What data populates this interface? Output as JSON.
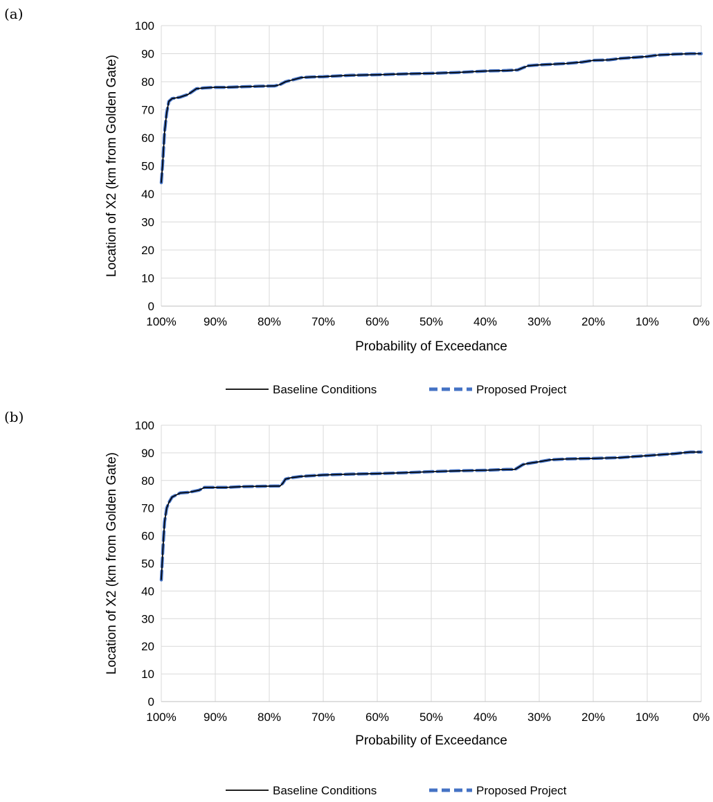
{
  "panels": [
    {
      "label": "(a)"
    },
    {
      "label": "(b)"
    }
  ],
  "chart_data": [
    {
      "type": "line",
      "xlabel": "Probability of Exceedance",
      "ylabel": "Location of X2 (km from Golden Gate)",
      "xlim": [
        100,
        0
      ],
      "ylim": [
        0,
        100
      ],
      "x_ticks": [
        "100%",
        "90%",
        "80%",
        "70%",
        "60%",
        "50%",
        "40%",
        "30%",
        "20%",
        "10%",
        "0%"
      ],
      "y_ticks": [
        "0",
        "10",
        "20",
        "30",
        "40",
        "50",
        "60",
        "70",
        "80",
        "90",
        "100"
      ],
      "grid": true,
      "legend_position": "bottom",
      "series": [
        {
          "name": "Baseline Conditions",
          "color": "#000000",
          "style": "solid",
          "x": [
            100,
            99.7,
            99.4,
            99,
            98.6,
            98,
            96.5,
            95,
            93.5,
            92,
            90,
            88,
            85,
            82,
            79,
            78,
            77,
            76,
            74,
            72,
            70,
            65,
            60,
            55,
            50,
            45,
            40,
            36,
            34,
            33,
            32,
            30,
            25,
            22,
            20,
            17,
            15,
            10,
            8,
            5,
            2,
            0
          ],
          "y": [
            44,
            52,
            62,
            69,
            73,
            74,
            74.5,
            75.5,
            77.5,
            77.8,
            78,
            78,
            78.2,
            78.4,
            78.5,
            79,
            80,
            80.5,
            81.5,
            81.7,
            81.8,
            82.3,
            82.5,
            82.8,
            83,
            83.3,
            83.8,
            84,
            84.2,
            85,
            85.7,
            86,
            86.5,
            87,
            87.6,
            87.8,
            88.3,
            89,
            89.5,
            89.8,
            90,
            90
          ]
        },
        {
          "name": "Proposed Project",
          "color": "#4472C4",
          "style": "dashed",
          "x": [
            100,
            99.7,
            99.4,
            99,
            98.6,
            98,
            96.5,
            95,
            93.5,
            92,
            90,
            88,
            85,
            82,
            79,
            78,
            77,
            76,
            74,
            72,
            70,
            65,
            60,
            55,
            50,
            45,
            40,
            36,
            34,
            33,
            32,
            30,
            25,
            22,
            20,
            17,
            15,
            10,
            8,
            5,
            2,
            0
          ],
          "y": [
            44,
            52,
            62,
            69,
            73,
            74,
            74.5,
            75.5,
            77.5,
            77.8,
            78,
            78,
            78.2,
            78.4,
            78.5,
            79,
            80,
            80.5,
            81.5,
            81.7,
            81.8,
            82.3,
            82.5,
            82.8,
            83,
            83.3,
            83.8,
            84,
            84.2,
            85,
            85.7,
            86,
            86.5,
            87,
            87.6,
            87.8,
            88.3,
            89,
            89.5,
            89.8,
            90,
            90
          ]
        }
      ]
    },
    {
      "type": "line",
      "xlabel": "Probability of Exceedance",
      "ylabel": "Location of X2 (km from Golden Gate)",
      "xlim": [
        100,
        0
      ],
      "ylim": [
        0,
        100
      ],
      "x_ticks": [
        "100%",
        "90%",
        "80%",
        "70%",
        "60%",
        "50%",
        "40%",
        "30%",
        "20%",
        "10%",
        "0%"
      ],
      "y_ticks": [
        "0",
        "10",
        "20",
        "30",
        "40",
        "50",
        "60",
        "70",
        "80",
        "90",
        "100"
      ],
      "grid": true,
      "legend_position": "bottom",
      "series": [
        {
          "name": "Baseline Conditions",
          "color": "#000000",
          "style": "solid",
          "x": [
            100,
            99.7,
            99.4,
            99,
            98.6,
            98,
            96.5,
            95,
            93,
            92,
            90,
            88,
            85,
            82,
            79,
            78,
            77.5,
            77,
            76,
            74,
            70,
            65,
            60,
            55,
            50,
            45,
            40,
            36,
            34.5,
            33,
            32,
            30,
            28,
            25,
            20,
            15,
            10,
            5,
            2,
            0
          ],
          "y": [
            44,
            55,
            65,
            70,
            72,
            74,
            75.5,
            75.7,
            76.5,
            77.5,
            77.5,
            77.5,
            77.8,
            77.9,
            78,
            78,
            79,
            80.5,
            81,
            81.5,
            82,
            82.3,
            82.5,
            82.8,
            83.2,
            83.5,
            83.7,
            84,
            84,
            85.8,
            86.2,
            86.8,
            87.5,
            87.8,
            88,
            88.3,
            89,
            89.7,
            90.3,
            90.3
          ]
        },
        {
          "name": "Proposed Project",
          "color": "#4472C4",
          "style": "dashed",
          "x": [
            100,
            99.7,
            99.4,
            99,
            98.6,
            98,
            96.5,
            95,
            93,
            92,
            90,
            88,
            85,
            82,
            79,
            78,
            77.5,
            77,
            76,
            74,
            70,
            65,
            60,
            55,
            50,
            45,
            40,
            36,
            34.5,
            33,
            32,
            30,
            28,
            25,
            20,
            15,
            10,
            5,
            2,
            0
          ],
          "y": [
            44,
            55,
            65,
            70,
            72,
            74,
            75.5,
            75.7,
            76.5,
            77.5,
            77.5,
            77.5,
            77.8,
            77.9,
            78,
            78,
            79,
            80.5,
            81,
            81.5,
            82,
            82.3,
            82.5,
            82.8,
            83.2,
            83.5,
            83.7,
            84,
            84,
            85.8,
            86.2,
            86.8,
            87.5,
            87.8,
            88,
            88.3,
            89,
            89.7,
            90.3,
            90.3
          ]
        }
      ]
    }
  ]
}
